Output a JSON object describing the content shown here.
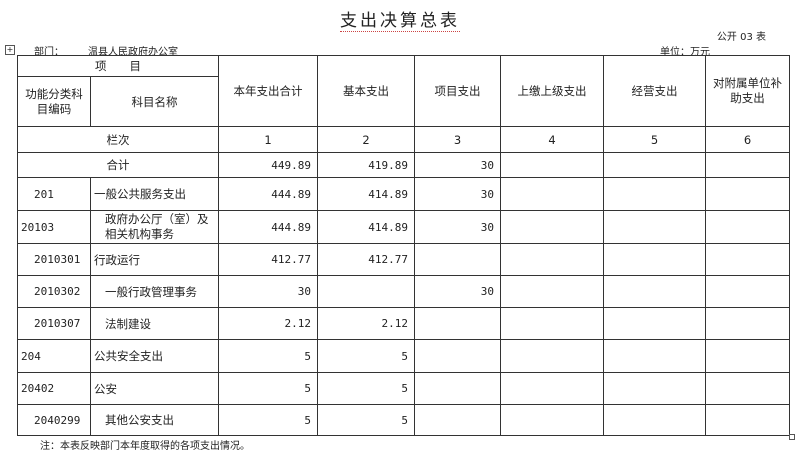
{
  "title": "支出决算总表",
  "form_no": "公开 03 表",
  "department_label": "部门：",
  "department": "温县人民政府办公室",
  "unit": "单位：万元",
  "header": {
    "item": "项　　目",
    "code": "功能分类科目编码",
    "name": "科目名称",
    "cols": [
      "本年支出合计",
      "基本支出",
      "项目支出",
      "上缴上级支出",
      "经营支出",
      "对附属单位补助支出"
    ]
  },
  "column_index_label": "栏次",
  "column_indexes": [
    "1",
    "2",
    "3",
    "4",
    "5",
    "6"
  ],
  "total": {
    "label": "合计",
    "values": [
      "449.89",
      "419.89",
      "30",
      "",
      "",
      ""
    ]
  },
  "rows": [
    {
      "code": "201",
      "name": "一般公共服务支出",
      "values": [
        "444.89",
        "414.89",
        "30",
        "",
        "",
        ""
      ]
    },
    {
      "code": "20103",
      "name": "政府办公厅（室）及相关机构事务",
      "values": [
        "444.89",
        "414.89",
        "30",
        "",
        "",
        ""
      ]
    },
    {
      "code": "2010301",
      "name": "行政运行",
      "values": [
        "412.77",
        "412.77",
        "",
        "",
        "",
        ""
      ]
    },
    {
      "code": "2010302",
      "name": "一般行政管理事务",
      "values": [
        "30",
        "",
        "30",
        "",
        "",
        ""
      ]
    },
    {
      "code": "2010307",
      "name": "法制建设",
      "values": [
        "2.12",
        "2.12",
        "",
        "",
        "",
        ""
      ]
    },
    {
      "code": "204",
      "name": "公共安全支出",
      "values": [
        "5",
        "5",
        "",
        "",
        "",
        ""
      ]
    },
    {
      "code": "20402",
      "name": "公安",
      "values": [
        "5",
        "5",
        "",
        "",
        "",
        ""
      ]
    },
    {
      "code": "2040299",
      "name": "其他公安支出",
      "values": [
        "5",
        "5",
        "",
        "",
        "",
        ""
      ]
    }
  ],
  "note": "注：本表反映部门本年度取得的各项支出情况。"
}
